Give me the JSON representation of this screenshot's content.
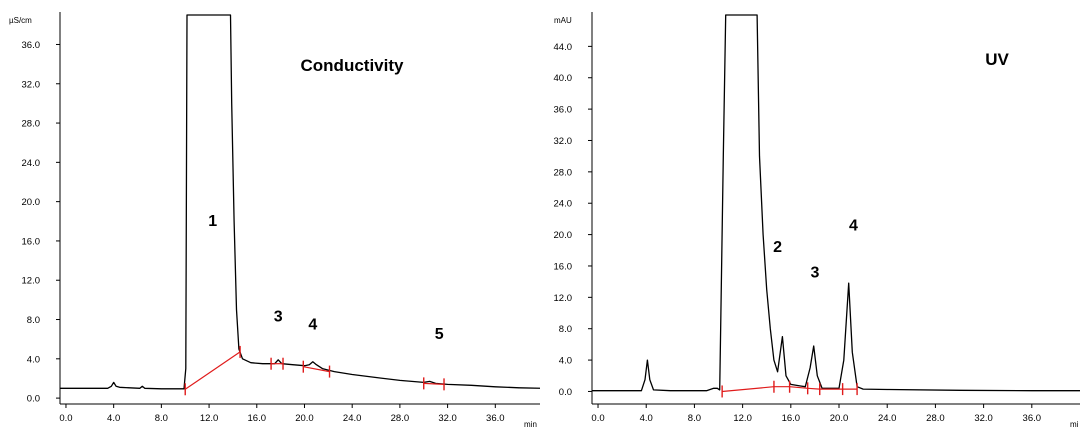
{
  "chart_data": [
    {
      "type": "line",
      "title": "Conductivity",
      "ylabel": "µS/cm",
      "xlabel": "min",
      "xlim": [
        -0.5,
        40.0
      ],
      "ylim": [
        -0.6,
        39.0
      ],
      "xticks": [
        0.0,
        4.0,
        8.0,
        12.0,
        16.0,
        20.0,
        24.0,
        28.0,
        32.0,
        36.0
      ],
      "xtick_labels": [
        "0.0",
        "4.0",
        "8.0",
        "12.0",
        "16.0",
        "20.0",
        "24.0",
        "28.0",
        "32.0",
        "36.0"
      ],
      "yticks": [
        0.0,
        4.0,
        8.0,
        12.0,
        16.0,
        20.0,
        24.0,
        28.0,
        32.0,
        36.0
      ],
      "ytick_labels": [
        "0.0",
        "4.0",
        "8.0",
        "12.0",
        "16.0",
        "20.0",
        "24.0",
        "28.0",
        "32.0",
        "36.0"
      ],
      "trace_color": "#000000",
      "baseline_color": "#e01b1b",
      "trace": [
        [
          -0.5,
          1.0
        ],
        [
          3.5,
          1.0
        ],
        [
          3.8,
          1.2
        ],
        [
          4.0,
          1.6
        ],
        [
          4.2,
          1.2
        ],
        [
          4.5,
          1.1
        ],
        [
          6.2,
          1.0
        ],
        [
          6.4,
          1.2
        ],
        [
          6.6,
          1.0
        ],
        [
          8.0,
          0.95
        ],
        [
          9.9,
          0.95
        ],
        [
          10.05,
          3.0
        ],
        [
          10.15,
          39.0
        ],
        [
          13.8,
          39.0
        ],
        [
          13.9,
          30.0
        ],
        [
          14.1,
          18.0
        ],
        [
          14.3,
          9.0
        ],
        [
          14.5,
          5.0
        ],
        [
          14.8,
          4.0
        ],
        [
          15.5,
          3.6
        ],
        [
          16.5,
          3.5
        ],
        [
          17.5,
          3.5
        ],
        [
          17.8,
          3.9
        ],
        [
          18.1,
          3.5
        ],
        [
          19.0,
          3.4
        ],
        [
          20.0,
          3.3
        ],
        [
          20.4,
          3.4
        ],
        [
          20.7,
          3.7
        ],
        [
          21.0,
          3.4
        ],
        [
          21.5,
          3.0
        ],
        [
          22.5,
          2.7
        ],
        [
          24.0,
          2.4
        ],
        [
          26.0,
          2.1
        ],
        [
          28.0,
          1.8
        ],
        [
          30.0,
          1.6
        ],
        [
          30.5,
          1.7
        ],
        [
          31.0,
          1.5
        ],
        [
          32.0,
          1.4
        ],
        [
          34.0,
          1.3
        ],
        [
          36.0,
          1.15
        ],
        [
          38.0,
          1.05
        ],
        [
          40.0,
          1.0
        ]
      ],
      "baselines": [
        [
          [
            10.0,
            0.9
          ],
          [
            14.6,
            4.7
          ]
        ],
        [
          [
            17.2,
            3.5
          ],
          [
            18.2,
            3.5
          ]
        ],
        [
          [
            19.9,
            3.2
          ],
          [
            22.1,
            2.7
          ]
        ],
        [
          [
            30.0,
            1.5
          ],
          [
            31.7,
            1.4
          ]
        ]
      ],
      "peak_markers": [
        [
          10.0,
          0.9
        ],
        [
          14.6,
          4.7
        ],
        [
          17.2,
          3.5
        ],
        [
          18.2,
          3.5
        ],
        [
          19.9,
          3.2
        ],
        [
          22.1,
          2.7
        ],
        [
          30.0,
          1.5
        ],
        [
          31.7,
          1.4
        ]
      ],
      "peak_labels": [
        {
          "text": "1",
          "x": 12.3,
          "y": 17.5
        },
        {
          "text": "3",
          "x": 17.8,
          "y": 7.8
        },
        {
          "text": "4",
          "x": 20.7,
          "y": 7.0
        },
        {
          "text": "5",
          "x": 31.3,
          "y": 6.0
        }
      ]
    },
    {
      "type": "line",
      "title": "UV",
      "ylabel": "mAU",
      "xlabel": "mi",
      "xlim": [
        -0.5,
        40.0
      ],
      "ylim": [
        -1.6,
        48.0
      ],
      "xticks": [
        0.0,
        4.0,
        8.0,
        12.0,
        16.0,
        20.0,
        24.0,
        28.0,
        32.0,
        36.0
      ],
      "xtick_labels": [
        "0.0",
        "4.0",
        "8.0",
        "12.0",
        "16.0",
        "20.0",
        "24.0",
        "28.0",
        "32.0",
        "36.0"
      ],
      "yticks": [
        0.0,
        4.0,
        8.0,
        12.0,
        16.0,
        20.0,
        24.0,
        28.0,
        32.0,
        36.0,
        40.0,
        44.0
      ],
      "ytick_labels": [
        "0.0",
        "4.0",
        "8.0",
        "12.0",
        "16.0",
        "20.0",
        "24.0",
        "28.0",
        "32.0",
        "36.0",
        "40.0",
        "44.0"
      ],
      "trace_color": "#000000",
      "baseline_color": "#e01b1b",
      "trace": [
        [
          -0.5,
          0.1
        ],
        [
          3.6,
          0.1
        ],
        [
          3.9,
          1.5
        ],
        [
          4.1,
          4.0
        ],
        [
          4.3,
          1.5
        ],
        [
          4.6,
          0.2
        ],
        [
          6.0,
          0.1
        ],
        [
          9.0,
          0.1
        ],
        [
          9.6,
          0.4
        ],
        [
          9.9,
          0.4
        ],
        [
          10.1,
          0.2
        ],
        [
          10.2,
          10.0
        ],
        [
          10.4,
          30.0
        ],
        [
          10.6,
          48.0
        ],
        [
          13.2,
          48.0
        ],
        [
          13.4,
          30.0
        ],
        [
          13.7,
          20.0
        ],
        [
          14.0,
          13.0
        ],
        [
          14.3,
          8.0
        ],
        [
          14.6,
          4.0
        ],
        [
          14.9,
          2.5
        ],
        [
          15.3,
          7.0
        ],
        [
          15.6,
          2.0
        ],
        [
          16.0,
          0.9
        ],
        [
          16.8,
          0.7
        ],
        [
          17.2,
          0.6
        ],
        [
          17.6,
          3.0
        ],
        [
          17.9,
          5.8
        ],
        [
          18.2,
          2.0
        ],
        [
          18.6,
          0.4
        ],
        [
          20.0,
          0.4
        ],
        [
          20.4,
          4.0
        ],
        [
          20.8,
          13.8
        ],
        [
          21.1,
          5.0
        ],
        [
          21.5,
          0.6
        ],
        [
          22.0,
          0.3
        ],
        [
          24.0,
          0.25
        ],
        [
          30.0,
          0.15
        ],
        [
          36.0,
          0.1
        ],
        [
          40.0,
          0.1
        ]
      ],
      "baselines": [
        [
          [
            10.3,
            0.0
          ],
          [
            14.6,
            0.6
          ],
          [
            15.9,
            0.6
          ],
          [
            17.4,
            0.4
          ],
          [
            18.4,
            0.3
          ],
          [
            20.3,
            0.3
          ],
          [
            21.5,
            0.3
          ]
        ]
      ],
      "peak_markers": [
        [
          10.3,
          0.0
        ],
        [
          14.6,
          0.6
        ],
        [
          15.9,
          0.6
        ],
        [
          17.4,
          0.4
        ],
        [
          18.4,
          0.3
        ],
        [
          20.3,
          0.3
        ],
        [
          21.5,
          0.3
        ]
      ],
      "peak_labels": [
        {
          "text": "2",
          "x": 14.9,
          "y": 17.8
        },
        {
          "text": "3",
          "x": 18.0,
          "y": 14.5
        },
        {
          "text": "4",
          "x": 21.2,
          "y": 20.5
        }
      ]
    }
  ]
}
